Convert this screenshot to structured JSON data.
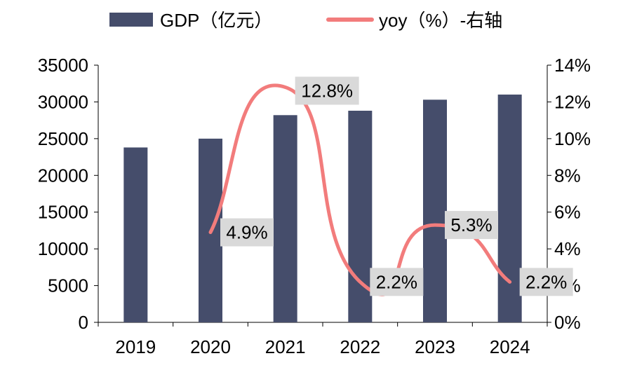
{
  "chart_data": {
    "type": "bar",
    "categories": [
      "2019",
      "2020",
      "2021",
      "2022",
      "2023",
      "2024"
    ],
    "series": [
      {
        "name": "GDP（亿元）",
        "type": "bar",
        "axis": "left",
        "color": "#454d6b",
        "values": [
          23800,
          25000,
          28200,
          28800,
          30300,
          31000
        ]
      },
      {
        "name": "yoy（%）-右轴",
        "type": "line",
        "axis": "right",
        "color": "#f27c7c",
        "values": [
          null,
          4.9,
          12.8,
          2.2,
          5.3,
          2.2
        ],
        "labels": [
          "",
          "4.9%",
          "12.8%",
          "2.2%",
          "5.3%",
          "2.2%"
        ]
      }
    ],
    "left_axis": {
      "ylim": [
        0,
        35000
      ],
      "ticks": [
        "0",
        "5000",
        "10000",
        "15000",
        "20000",
        "25000",
        "30000",
        "35000"
      ]
    },
    "right_axis": {
      "ylim": [
        0,
        14
      ],
      "ticks": [
        "0%",
        "2%",
        "4%",
        "6%",
        "8%",
        "10%",
        "12%",
        "14%"
      ]
    },
    "legend_position": "top",
    "grid": false,
    "label_background": "#d9d9d9"
  }
}
